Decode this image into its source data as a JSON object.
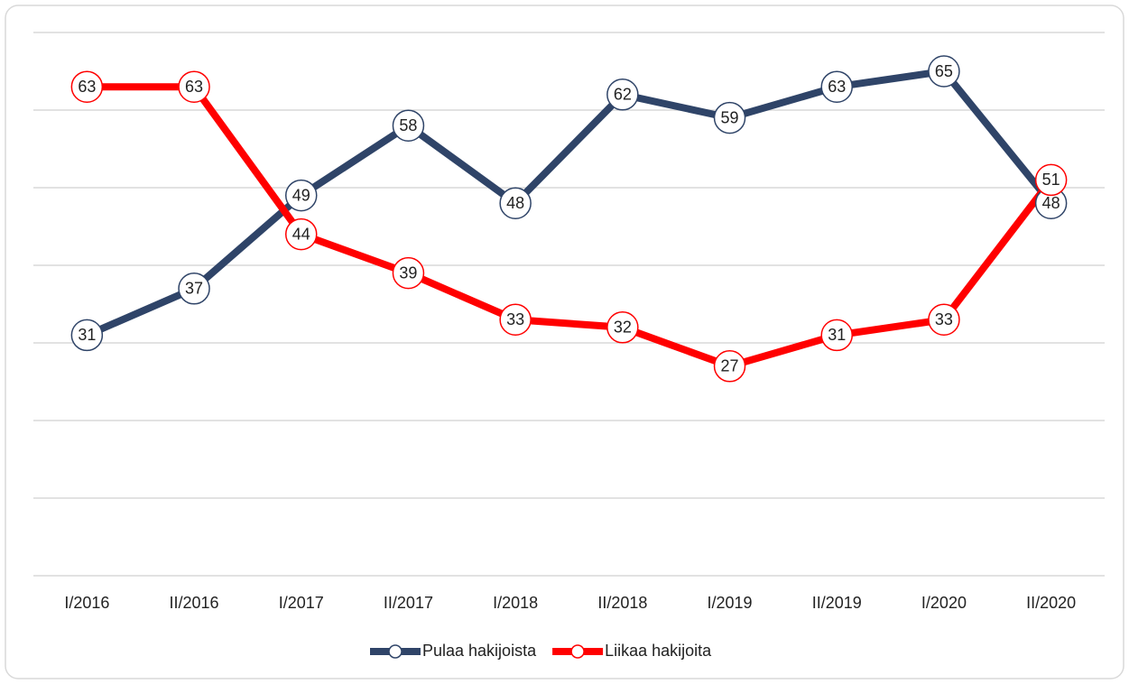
{
  "chart_data": {
    "type": "line",
    "categories": [
      "I/2016",
      "II/2016",
      "I/2017",
      "II/2017",
      "I/2018",
      "II/2018",
      "I/2019",
      "II/2019",
      "I/2020",
      "II/2020"
    ],
    "series": [
      {
        "name": "Pulaa hakijoista",
        "color": "#2f4468",
        "values": [
          31,
          37,
          49,
          58,
          48,
          62,
          59,
          63,
          65,
          48
        ]
      },
      {
        "name": "Liikaa hakijoita",
        "color": "#ff0000",
        "values": [
          63,
          63,
          44,
          39,
          33,
          32,
          27,
          31,
          33,
          51
        ]
      }
    ],
    "ylim": [
      0,
      70
    ],
    "yticks": [
      0,
      10,
      20,
      30,
      40,
      50,
      60,
      70
    ],
    "grid": true,
    "legend": "bottom"
  }
}
